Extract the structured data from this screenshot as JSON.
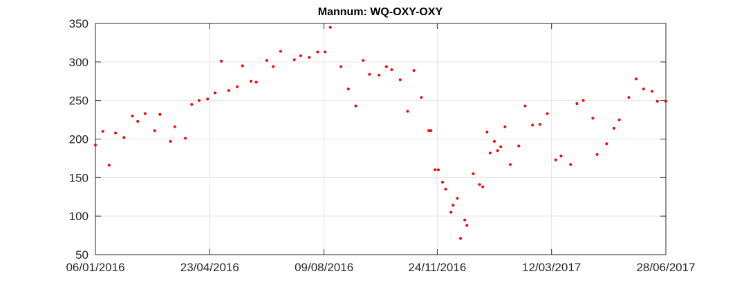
{
  "chart_data": {
    "type": "scatter",
    "title": "Mannum: WQ-OXY-OXY",
    "color": "#ff0000",
    "grid": true,
    "xlim": [
      "2016-01-06",
      "2017-06-28"
    ],
    "xticks": [
      {
        "value": "2016-01-06",
        "label": "06/01/2016"
      },
      {
        "value": "2016-04-23",
        "label": "23/04/2016"
      },
      {
        "value": "2016-08-09",
        "label": "09/08/2016"
      },
      {
        "value": "2016-11-24",
        "label": "24/11/2016"
      },
      {
        "value": "2017-03-12",
        "label": "12/03/2017"
      },
      {
        "value": "2017-06-28",
        "label": "28/06/2017"
      }
    ],
    "ylim": [
      50,
      350
    ],
    "yticks": [
      50,
      100,
      150,
      200,
      250,
      300,
      350
    ],
    "x": [
      "2016-01-06",
      "2016-01-13",
      "2016-01-19",
      "2016-01-25",
      "2016-02-02",
      "2016-02-10",
      "2016-02-15",
      "2016-02-22",
      "2016-03-02",
      "2016-03-07",
      "2016-03-17",
      "2016-03-21",
      "2016-03-31",
      "2016-04-06",
      "2016-04-13",
      "2016-04-21",
      "2016-04-28",
      "2016-05-04",
      "2016-05-11",
      "2016-05-19",
      "2016-05-24",
      "2016-06-01",
      "2016-06-06",
      "2016-06-16",
      "2016-06-22",
      "2016-06-29",
      "2016-07-12",
      "2016-07-18",
      "2016-07-26",
      "2016-08-03",
      "2016-08-10",
      "2016-08-15",
      "2016-08-25",
      "2016-09-01",
      "2016-09-08",
      "2016-09-15",
      "2016-09-21",
      "2016-09-30",
      "2016-10-07",
      "2016-10-12",
      "2016-10-20",
      "2016-10-27",
      "2016-11-02",
      "2016-11-09",
      "2016-11-16",
      "2016-11-18",
      "2016-11-22",
      "2016-11-25",
      "2016-11-29",
      "2016-12-02",
      "2016-12-07",
      "2016-12-09",
      "2016-12-13",
      "2016-12-16",
      "2016-12-20",
      "2016-12-22",
      "2016-12-28",
      "2017-01-03",
      "2017-01-06",
      "2017-01-10",
      "2017-01-13",
      "2017-01-17",
      "2017-01-20",
      "2017-01-23",
      "2017-01-27",
      "2017-02-01",
      "2017-02-09",
      "2017-02-15",
      "2017-02-22",
      "2017-03-01",
      "2017-03-08",
      "2017-03-16",
      "2017-03-21",
      "2017-03-30",
      "2017-04-05",
      "2017-04-11",
      "2017-04-20",
      "2017-04-24",
      "2017-05-03",
      "2017-05-10",
      "2017-05-15",
      "2017-05-24",
      "2017-05-31",
      "2017-06-07",
      "2017-06-15",
      "2017-06-20",
      "2017-06-28"
    ],
    "values": [
      192,
      210,
      166,
      208,
      202,
      230,
      223,
      233,
      211,
      232,
      197,
      216,
      201,
      245,
      250,
      252,
      260,
      301,
      263,
      268,
      295,
      275,
      274,
      302,
      294,
      314,
      303,
      308,
      306,
      313,
      313,
      345,
      294,
      265,
      243,
      302,
      284,
      283,
      294,
      290,
      277,
      236,
      289,
      254,
      211,
      211,
      160,
      160,
      144,
      135,
      105,
      114,
      123,
      71,
      95,
      88,
      155,
      141,
      138,
      209,
      182,
      197,
      185,
      190,
      216,
      167,
      191,
      243,
      218,
      219,
      233,
      173,
      178,
      167,
      246,
      250,
      227,
      180,
      194,
      214,
      225,
      254,
      278,
      265,
      262,
      249,
      249
    ]
  }
}
